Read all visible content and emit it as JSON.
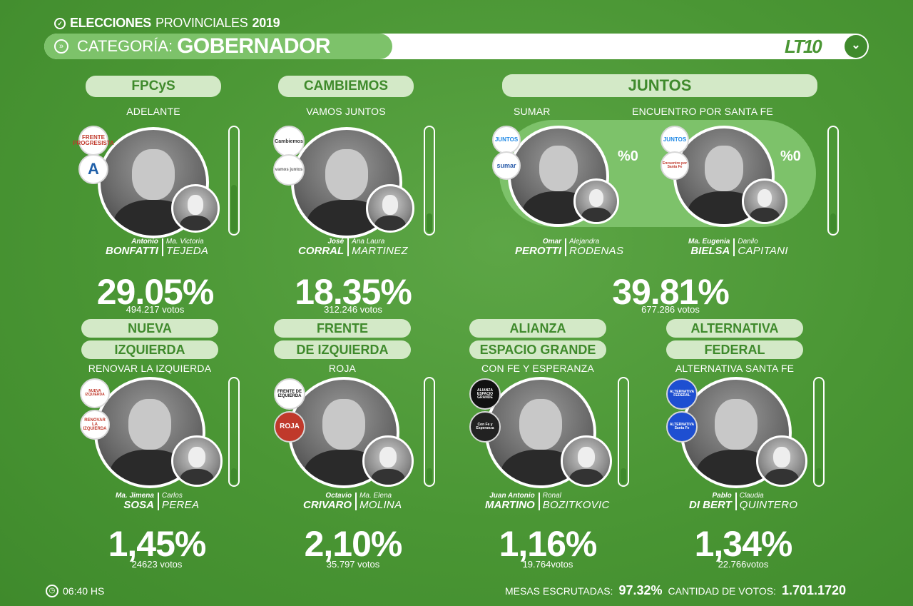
{
  "header": {
    "title_bold": "ELECCIONES",
    "title_light": "PROVINCIALES",
    "title_year": "2019",
    "category_label": "CATEGORÍA:",
    "category_value": "GOBERNADOR",
    "logo": "LT10"
  },
  "colors": {
    "bg": "#4a9634",
    "pill": "#d3e9c7",
    "accent": "#3f8a2c"
  },
  "top": [
    {
      "party": "FPCyS",
      "list": "ADELANTE",
      "first1": "Antonio",
      "last1": "BONFATTI",
      "first2": "Ma. Victoria",
      "last2": "TEJEDA",
      "pct": "29.05%",
      "votes": "494.217 votos",
      "gauge": 0.45,
      "badges": [
        "FRENTE PROGRESISTA",
        "A"
      ]
    },
    {
      "party": "CAMBIEMOS",
      "list": "VAMOS JUNTOS",
      "first1": "José",
      "last1": "CORRAL",
      "first2": "Ana Laura",
      "last2": "MARTINEZ",
      "pct": "18.35%",
      "votes": "312.246 votos",
      "gauge": 0.18,
      "badges": [
        "Cambiemos",
        "vamos juntos"
      ]
    }
  ],
  "juntos": {
    "party": "JUNTOS",
    "pct": "39.81%",
    "votes": "677.286 votos",
    "gauge": 0.18,
    "lists": [
      {
        "list": "SUMAR",
        "first1": "Omar",
        "last1": "PEROTTI",
        "first2": "Alejandra",
        "last2": "RODENAS",
        "pct0": "%0",
        "badges": [
          "JUNTOS",
          "sumar"
        ]
      },
      {
        "list": "ENCUENTRO POR SANTA FE",
        "first1": "Ma. Eugenia",
        "last1": "BIELSA",
        "first2": "Danilo",
        "last2": "CAPITANI",
        "pct0": "%0",
        "badges": [
          "JUNTOS",
          "Encuentro por Santa Fe"
        ]
      }
    ]
  },
  "bottom": [
    {
      "party1": "NUEVA",
      "party2": "IZQUIERDA",
      "list": "RENOVAR LA IZQUIERDA",
      "first1": "Ma. Jimena",
      "last1": "SOSA",
      "first2": "Carlos",
      "last2": "PEREA",
      "pct": "1,45%",
      "votes": "24623 votos",
      "gauge": 0.15,
      "badges": [
        "NUEVA IZQUIERDA",
        "RENOVAR LA IZQUIERDA"
      ]
    },
    {
      "party1": "FRENTE",
      "party2": "DE IZQUIERDA",
      "list": "ROJA",
      "first1": "Octavio",
      "last1": "CRIVARO",
      "first2": "Ma. Elena",
      "last2": "MOLINA",
      "pct": "2,10%",
      "votes": "35.797 votos",
      "gauge": 0.15,
      "badges": [
        "FRENTE DE IZQUIERDA",
        "ROJA"
      ]
    },
    {
      "party1": "ALIANZA",
      "party2": "ESPACIO GRANDE",
      "list": "CON FE Y ESPERANZA",
      "first1": "Juan Antonio",
      "last1": "MARTINO",
      "first2": "Ronal",
      "last2": "BOZITKOVIC",
      "pct": "1,16%",
      "votes": "19.764votos",
      "gauge": 0.15,
      "badges": [
        "ALIANZA ESPACIO GRANDE",
        "Con Fe y Esperanza"
      ]
    },
    {
      "party1": "ALTERNATIVA",
      "party2": "FEDERAL",
      "list": "ALTERNATIVA SANTA FE",
      "first1": "Pablo",
      "last1": "DI BERT",
      "first2": "Claudia",
      "last2": "QUINTERO",
      "pct": "1,34%",
      "votes": "22.766votos",
      "gauge": 0.15,
      "badges": [
        "ALTERNATIVA FEDERAL",
        "ALTERNATIVA Santa Fe"
      ]
    }
  ],
  "footer": {
    "time": "06:40 HS",
    "mesas_label": "MESAS ESCRUTADAS:",
    "mesas_value": "97.32%",
    "votos_label": "CANTIDAD DE VOTOS:",
    "votos_value": "1.701.1720"
  }
}
